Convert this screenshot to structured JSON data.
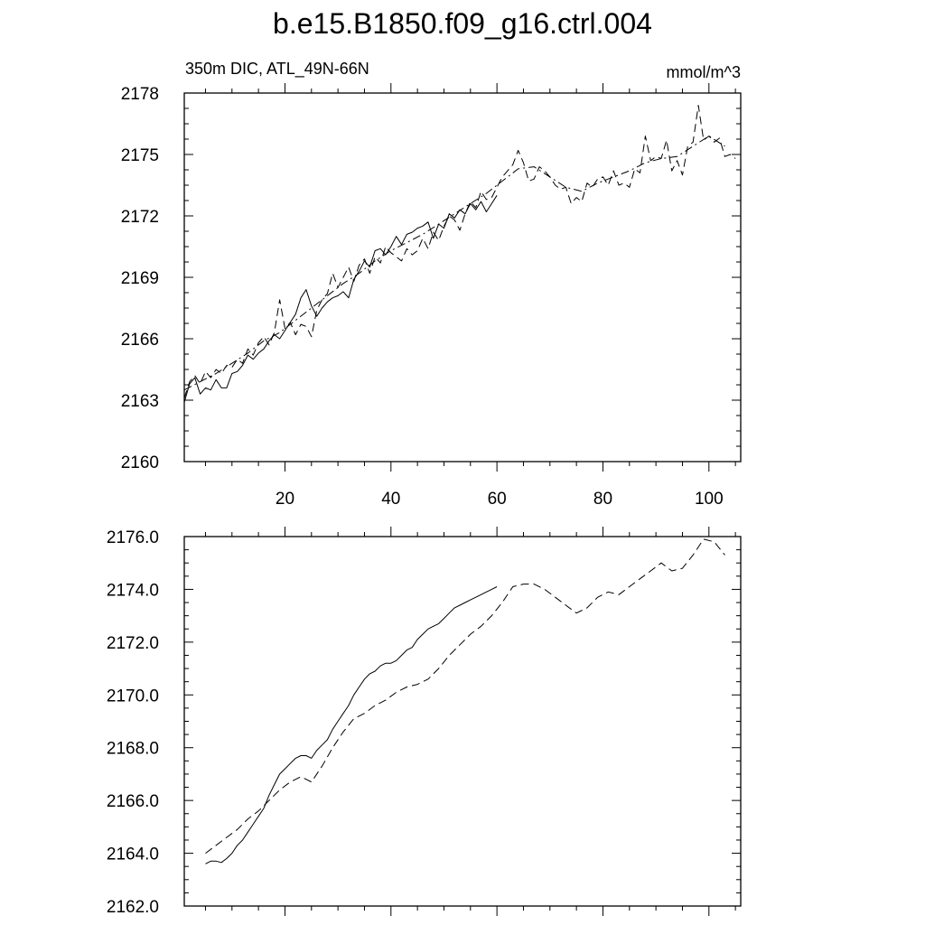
{
  "title": "b.e15.B1850.f09_g16.ctrl.004",
  "chart_data": [
    {
      "type": "line",
      "left_string": "350m DIC, ATL_49N-66N",
      "right_string": "mmol/m^3",
      "xlim": [
        1,
        106
      ],
      "ylim": [
        2160,
        2178
      ],
      "xticks": [
        20,
        40,
        60,
        80,
        100
      ],
      "xtick_labels": [
        "20",
        "40",
        "60",
        "80",
        "100"
      ],
      "yticks": [
        2160,
        2163,
        2166,
        2169,
        2172,
        2175,
        2178
      ],
      "ytick_labels": [
        "2160",
        "2163",
        "2166",
        "2169",
        "2172",
        "2175",
        "2178"
      ],
      "grid": false,
      "series": [
        {
          "style": "solid",
          "x": [
            1,
            2,
            3,
            4,
            5,
            6,
            7,
            8,
            9,
            10,
            11,
            12,
            13,
            14,
            15,
            16,
            17,
            18,
            19,
            20,
            21,
            22,
            23,
            24,
            25,
            26,
            27,
            28,
            29,
            30,
            31,
            32,
            33,
            34,
            35,
            36,
            37,
            38,
            39,
            40,
            41,
            42,
            43,
            44,
            45,
            46,
            47,
            48,
            49,
            50,
            51,
            52,
            53,
            54,
            55,
            56,
            57,
            58,
            59,
            60
          ],
          "y": [
            2162.9,
            2163.8,
            2164.1,
            2163.3,
            2163.6,
            2163.5,
            2164.0,
            2163.6,
            2163.6,
            2164.3,
            2164.4,
            2164.7,
            2165.2,
            2165.0,
            2165.3,
            2165.5,
            2165.9,
            2166.2,
            2166.0,
            2166.4,
            2166.8,
            2167.2,
            2168.0,
            2168.4,
            2167.6,
            2167.1,
            2167.5,
            2167.8,
            2168.0,
            2168.1,
            2168.3,
            2168.0,
            2168.9,
            2169.3,
            2169.8,
            2169.5,
            2170.3,
            2170.4,
            2170.1,
            2170.5,
            2171.0,
            2170.6,
            2171.1,
            2171.2,
            2171.4,
            2171.5,
            2171.7,
            2170.9,
            2171.6,
            2171.4,
            2172.1,
            2171.9,
            2172.3,
            2172.1,
            2172.6,
            2172.3,
            2172.7,
            2172.2,
            2172.6,
            2173.0
          ]
        },
        {
          "style": "dash",
          "x": [
            1,
            2,
            3,
            4,
            5,
            6,
            7,
            8,
            9,
            10,
            11,
            12,
            13,
            14,
            15,
            16,
            17,
            18,
            19,
            20,
            21,
            22,
            23,
            24,
            25,
            26,
            27,
            28,
            29,
            30,
            31,
            32,
            33,
            34,
            35,
            36,
            37,
            38,
            39,
            40,
            41,
            42,
            43,
            44,
            45,
            46,
            47,
            48,
            49,
            50,
            51,
            52,
            53,
            54,
            55,
            56,
            57,
            58,
            59,
            60,
            61,
            62,
            63,
            64,
            65,
            66,
            67,
            68,
            69,
            70,
            71,
            72,
            73,
            74,
            75,
            76,
            77,
            78,
            79,
            80,
            81,
            82,
            83,
            84,
            85,
            86,
            87,
            88,
            89,
            90,
            91,
            92,
            93,
            94,
            95,
            96,
            97,
            98,
            99,
            100,
            101,
            102,
            103,
            104,
            105
          ],
          "y": [
            2163.1,
            2163.9,
            2164.2,
            2163.8,
            2164.4,
            2164.1,
            2164.5,
            2164.3,
            2164.7,
            2164.6,
            2165.0,
            2164.8,
            2165.5,
            2165.2,
            2165.8,
            2166.1,
            2165.7,
            2166.3,
            2167.9,
            2166.5,
            2166.8,
            2166.2,
            2166.7,
            2166.6,
            2166.1,
            2167.4,
            2167.9,
            2168.2,
            2169.2,
            2168.5,
            2169.0,
            2169.5,
            2168.8,
            2169.6,
            2169.9,
            2169.2,
            2170.0,
            2169.7,
            2170.5,
            2170.2,
            2170.0,
            2169.8,
            2170.4,
            2170.1,
            2170.3,
            2170.9,
            2170.4,
            2171.2,
            2170.8,
            2171.5,
            2172.0,
            2171.8,
            2171.3,
            2172.1,
            2172.7,
            2172.4,
            2173.2,
            2172.8,
            2172.9,
            2173.4,
            2173.9,
            2174.2,
            2174.5,
            2175.2,
            2174.6,
            2173.7,
            2173.8,
            2174.4,
            2174.2,
            2173.9,
            2173.5,
            2173.3,
            2173.4,
            2172.6,
            2172.9,
            2172.7,
            2173.6,
            2173.4,
            2173.8,
            2173.9,
            2173.5,
            2174.2,
            2173.5,
            2173.6,
            2173.4,
            2174.3,
            2174.1,
            2175.9,
            2174.7,
            2174.9,
            2174.8,
            2175.7,
            2174.2,
            2174.7,
            2174.0,
            2175.4,
            2175.6,
            2177.4,
            2175.7,
            2175.9,
            2175.6,
            2175.8,
            2174.9,
            2175.0,
            2174.8
          ]
        },
        {
          "style": "dashdot",
          "x": [
            1,
            4,
            7,
            10,
            13,
            16,
            19,
            22,
            25,
            28,
            31,
            34,
            37,
            40,
            43,
            46,
            49,
            52,
            55,
            58,
            61,
            64,
            67,
            70,
            73,
            76,
            79,
            82,
            85,
            88,
            91,
            94,
            97,
            100,
            103
          ],
          "y": [
            2163.5,
            2163.9,
            2164.3,
            2164.8,
            2165.3,
            2165.9,
            2166.3,
            2166.9,
            2167.5,
            2168.1,
            2168.7,
            2169.2,
            2169.8,
            2170.3,
            2170.7,
            2171.1,
            2171.6,
            2172.1,
            2172.6,
            2173.1,
            2173.7,
            2174.3,
            2174.4,
            2173.9,
            2173.4,
            2173.2,
            2173.6,
            2173.9,
            2174.2,
            2174.6,
            2174.8,
            2174.9,
            2175.4,
            2175.9,
            2175.4
          ]
        }
      ]
    },
    {
      "type": "line",
      "xlim": [
        1,
        106
      ],
      "ylim": [
        2162.0,
        2176.0
      ],
      "xticks": [
        20,
        40,
        60,
        80,
        100
      ],
      "yticks": [
        2162.0,
        2164.0,
        2166.0,
        2168.0,
        2170.0,
        2172.0,
        2174.0,
        2176.0
      ],
      "ytick_labels": [
        "2162.0",
        "2164.0",
        "2166.0",
        "2168.0",
        "2170.0",
        "2172.0",
        "2174.0",
        "2176.0"
      ],
      "grid": false,
      "series": [
        {
          "style": "solid",
          "x": [
            5,
            6,
            7,
            8,
            9,
            10,
            11,
            12,
            13,
            14,
            15,
            16,
            17,
            18,
            19,
            20,
            21,
            22,
            23,
            24,
            25,
            26,
            27,
            28,
            29,
            30,
            31,
            32,
            33,
            34,
            35,
            36,
            37,
            38,
            39,
            40,
            41,
            42,
            43,
            44,
            45,
            46,
            47,
            48,
            49,
            50,
            51,
            52,
            53,
            54,
            55,
            56,
            57,
            58,
            59,
            60
          ],
          "y": [
            2163.6,
            2163.7,
            2163.7,
            2163.65,
            2163.8,
            2164.0,
            2164.3,
            2164.5,
            2164.8,
            2165.1,
            2165.4,
            2165.7,
            2166.2,
            2166.6,
            2167.0,
            2167.2,
            2167.4,
            2167.6,
            2167.7,
            2167.7,
            2167.6,
            2167.9,
            2168.1,
            2168.3,
            2168.7,
            2169.0,
            2169.3,
            2169.6,
            2170.0,
            2170.3,
            2170.6,
            2170.8,
            2170.9,
            2171.1,
            2171.2,
            2171.2,
            2171.3,
            2171.5,
            2171.7,
            2171.8,
            2172.1,
            2172.3,
            2172.5,
            2172.6,
            2172.7,
            2172.9,
            2173.1,
            2173.3,
            2173.4,
            2173.5,
            2173.6,
            2173.7,
            2173.8,
            2173.9,
            2174.0,
            2174.1
          ]
        },
        {
          "style": "dash",
          "x": [
            5,
            7,
            9,
            11,
            13,
            15,
            17,
            19,
            21,
            23,
            25,
            27,
            29,
            31,
            33,
            35,
            37,
            39,
            41,
            43,
            45,
            47,
            49,
            51,
            53,
            55,
            57,
            59,
            61,
            63,
            65,
            67,
            69,
            71,
            73,
            75,
            77,
            79,
            81,
            83,
            85,
            87,
            89,
            91,
            93,
            95,
            97,
            99,
            101,
            103
          ],
          "y": [
            2164.0,
            2164.3,
            2164.6,
            2164.9,
            2165.3,
            2165.6,
            2166.0,
            2166.4,
            2166.7,
            2166.9,
            2166.7,
            2167.3,
            2168.0,
            2168.6,
            2169.1,
            2169.3,
            2169.6,
            2169.8,
            2170.1,
            2170.3,
            2170.4,
            2170.6,
            2171.0,
            2171.5,
            2171.9,
            2172.3,
            2172.6,
            2173.0,
            2173.5,
            2174.1,
            2174.2,
            2174.2,
            2174.0,
            2173.7,
            2173.4,
            2173.1,
            2173.3,
            2173.7,
            2173.9,
            2173.8,
            2174.1,
            2174.4,
            2174.7,
            2175.0,
            2174.7,
            2174.8,
            2175.3,
            2175.9,
            2175.8,
            2175.3
          ]
        }
      ]
    }
  ]
}
